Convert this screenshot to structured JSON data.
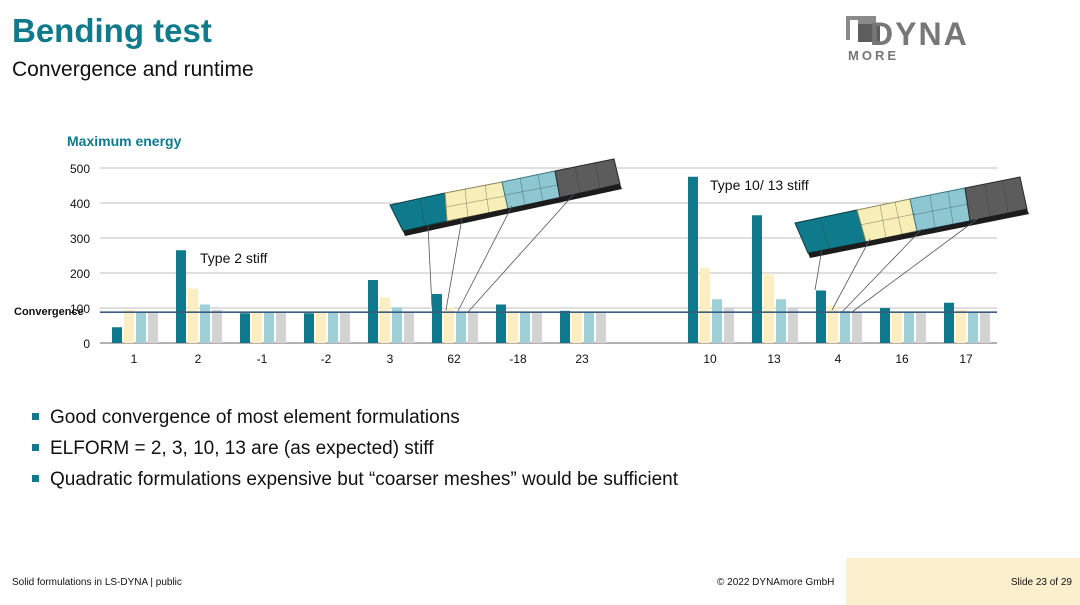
{
  "header": {
    "title": "Bending test",
    "subtitle": "Convergence and runtime"
  },
  "logo": {
    "line1": "DYNA",
    "line2": "MORE"
  },
  "chart_data": {
    "type": "bar",
    "title": "Maximum energy",
    "ylim": [
      0,
      500
    ],
    "yticks": [
      0,
      100,
      200,
      300,
      400,
      500
    ],
    "grid": true,
    "convergence_label": "Convergence",
    "convergence_value": 88,
    "categories": [
      "1",
      "2",
      "-1",
      "-2",
      "3",
      "62",
      "-18",
      "23",
      "10",
      "13",
      "4",
      "16",
      "17"
    ],
    "series": [
      {
        "values": [
          45,
          265,
          85,
          85,
          180,
          140,
          110,
          92,
          475,
          365,
          150,
          100,
          115
        ]
      },
      {
        "values": [
          95,
          155,
          88,
          88,
          130,
          102,
          92,
          88,
          215,
          195,
          105,
          90,
          95
        ]
      },
      {
        "values": [
          88,
          110,
          86,
          86,
          102,
          90,
          88,
          86,
          125,
          125,
          92,
          86,
          88
        ]
      },
      {
        "values": [
          88,
          95,
          86,
          86,
          90,
          88,
          88,
          86,
          98,
          98,
          88,
          86,
          88
        ]
      }
    ],
    "annotations": [
      "Type 2 stiff",
      "Type 10/ 13 stiff"
    ]
  },
  "colors": {
    "accent": "#0f7a8c",
    "series": [
      "#0f7a8c",
      "#fbeec5",
      "#9fcfd9",
      "#d3d3d3"
    ],
    "convergence_line": "#3a5d80",
    "footer_box": "#fbefce"
  },
  "bullets": [
    "Good convergence of most element formulations",
    "ELFORM = 2, 3, 10, 13 are (as expected) stiff",
    "Quadratic formulations expensive but “coarser meshes” would be sufficient"
  ],
  "footer": {
    "left": "Solid formulations in LS-DYNA | public",
    "copyright": "© 2022 DYNAmore GmbH",
    "slide": "Slide 23 of 29"
  }
}
